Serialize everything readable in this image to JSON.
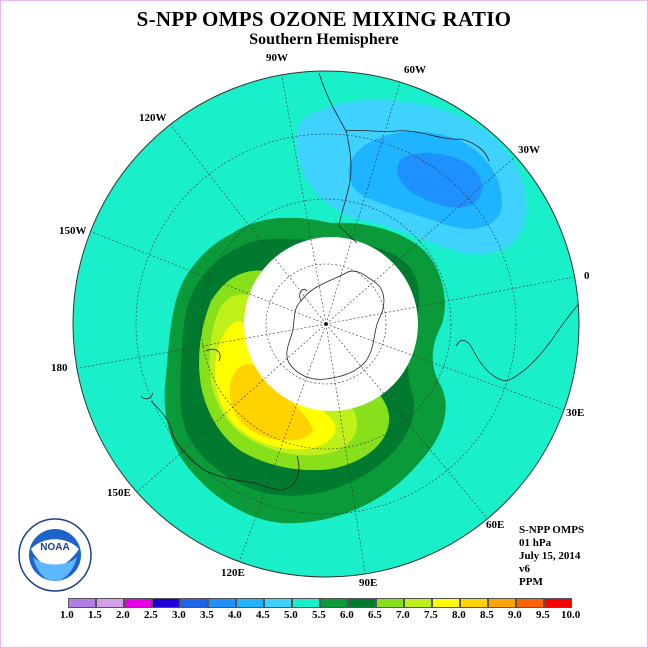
{
  "title": "S-NPP OMPS OZONE MIXING RATIO",
  "subtitle": "Southern Hemisphere",
  "longitude_labels": [
    "90W",
    "60W",
    "30W",
    "0",
    "30E",
    "60E",
    "90E",
    "120E",
    "150E",
    "180",
    "150W",
    "120W"
  ],
  "info": {
    "instrument": "S-NPP OMPS",
    "pressure": "01 hPa",
    "date": "July 15, 2014",
    "version": "v6",
    "units": "PPM"
  },
  "logo_text": "NOAA",
  "logo_ring_text": "NATIONAL OCEANIC AND ATMOSPHERIC ADMINISTRATION · U.S. DEPARTMENT OF COMMERCE",
  "colorbar": {
    "labels": [
      "1.0",
      "1.5",
      "2.0",
      "2.5",
      "3.0",
      "3.5",
      "4.0",
      "4.5",
      "5.0",
      "5.5",
      "6.0",
      "6.5",
      "7.0",
      "7.5",
      "8.0",
      "8.5",
      "9.0",
      "9.5",
      "10.0"
    ],
    "colors": [
      "#b27fe6",
      "#d39fe9",
      "#e600e6",
      "#1d00d6",
      "#1e64e6",
      "#1e90ff",
      "#1fb4ff",
      "#3fd2ff",
      "#19f0c9",
      "#0a9a3a",
      "#007a2e",
      "#88e01a",
      "#c0f01a",
      "#ffff00",
      "#ffd200",
      "#ffa500",
      "#ff6200",
      "#ff0000",
      "#8b5a3c"
    ]
  },
  "ozone_field": {
    "background_level": "5.0-5.5",
    "low_region_levels": [
      "4.0-4.5",
      "3.5-4.0",
      "3.0-3.5"
    ],
    "high_region_levels": [
      "5.5-6.0",
      "6.0-6.5",
      "6.5-7.0",
      "7.0-7.5",
      "7.5-8.0",
      "8.0-8.5"
    ],
    "polar_night_no_data": true
  },
  "colors": {
    "frame_border": "#e9b7e9",
    "ocean_background": "#19f0c9",
    "no_data": "#ffffff"
  }
}
